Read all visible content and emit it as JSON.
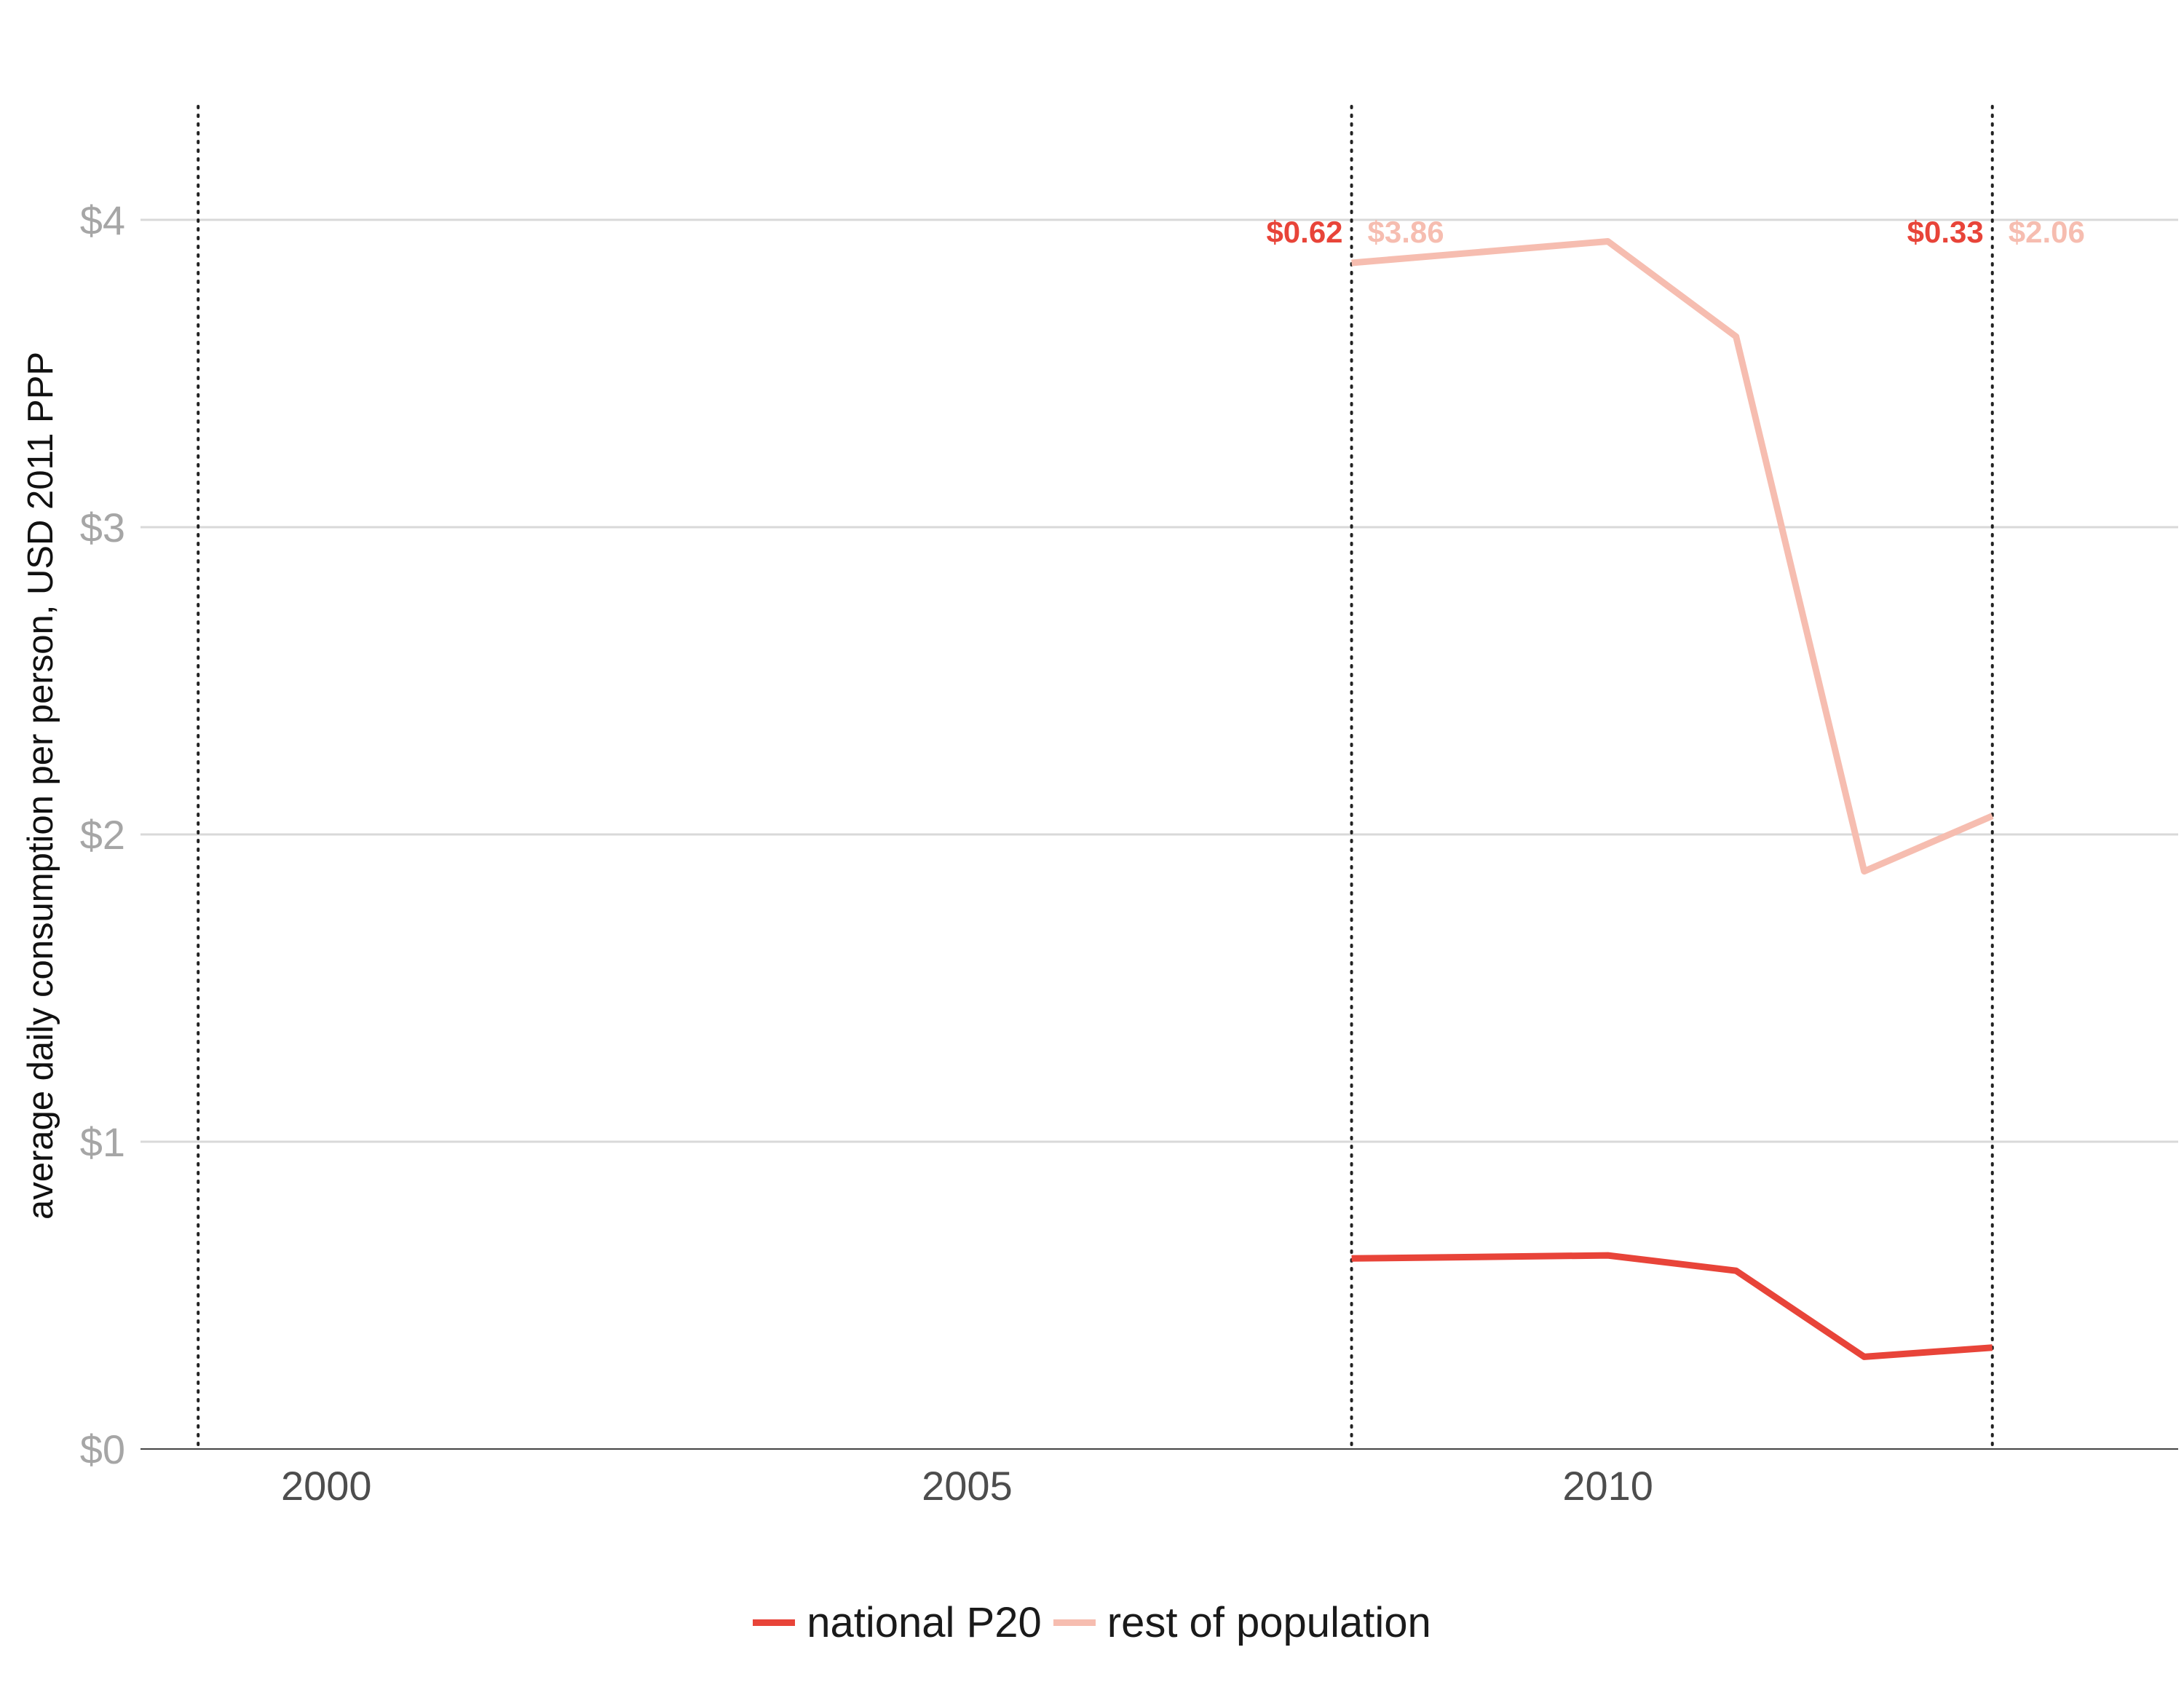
{
  "chart_data": {
    "type": "line",
    "ylabel": "average daily consumption per person, USD 2011 PPP",
    "xlabel": "",
    "xlim": [
      1998.55,
      2014.45
    ],
    "ylim": [
      0,
      4.36
    ],
    "x_ticks": [
      2000,
      2005,
      2010
    ],
    "x_tick_labels": [
      "2000",
      "2005",
      "2010"
    ],
    "y_ticks": [
      0,
      1,
      2,
      3,
      4
    ],
    "y_tick_labels": [
      "$0",
      "$1",
      "$2",
      "$3",
      "$4"
    ],
    "grid": "horizontal",
    "legend_position": "bottom",
    "reference_lines_x": [
      1999,
      2008,
      2013
    ],
    "series": [
      {
        "name": "national P20",
        "color": "#e84439",
        "x": [
          2008,
          2010,
          2011,
          2012,
          2013
        ],
        "y": [
          0.62,
          0.63,
          0.58,
          0.3,
          0.33
        ]
      },
      {
        "name": "rest of population",
        "color": "#f6bdb0",
        "x": [
          2008,
          2010,
          2011,
          2012,
          2013
        ],
        "y": [
          3.86,
          3.93,
          3.62,
          1.88,
          2.06
        ]
      }
    ],
    "annotations": [
      {
        "x": 2008,
        "side": "left",
        "text": "$0.62",
        "color": "#e84439"
      },
      {
        "x": 2008,
        "side": "right",
        "text": "$3.86",
        "color": "#f6bdb0"
      },
      {
        "x": 2013,
        "side": "left",
        "text": "$0.33",
        "color": "#e84439"
      },
      {
        "x": 2013,
        "side": "right",
        "text": "$2.06",
        "color": "#f6bdb0"
      }
    ]
  }
}
